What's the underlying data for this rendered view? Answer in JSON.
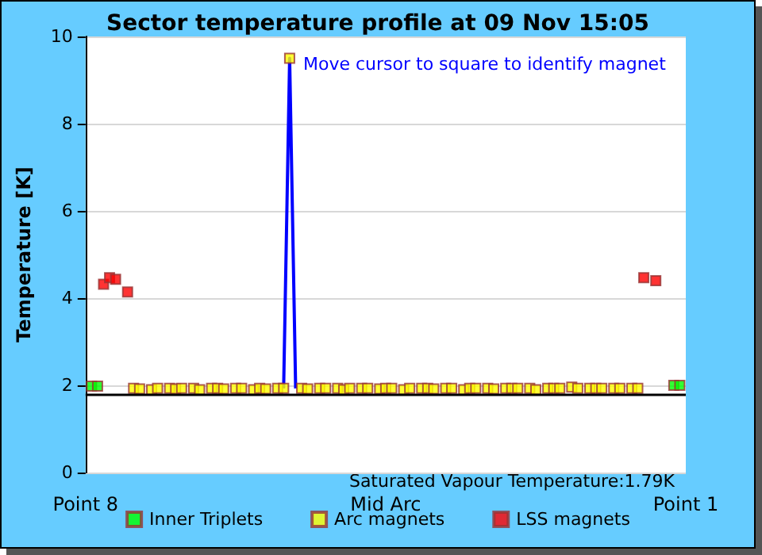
{
  "chart_data": {
    "type": "scatter",
    "title": "Sector temperature profile at 09 Nov 15:05",
    "ylabel": "Temperature [K]",
    "annotations": [
      "Move cursor to square to identify magnet",
      "Saturated Vapour Temperature:1.79K"
    ],
    "categories": [
      "Point 8",
      null,
      null,
      null,
      null,
      null,
      null,
      null,
      null,
      null,
      null,
      null,
      null,
      null,
      null,
      null,
      null,
      null,
      null,
      null,
      null,
      null,
      null,
      null,
      null,
      null,
      null,
      null,
      null,
      null,
      null,
      null,
      null,
      null,
      null,
      null,
      null,
      null,
      null,
      null,
      null,
      null,
      null,
      null,
      null,
      null,
      null,
      null,
      null,
      null,
      "Mid Arc",
      null,
      null,
      null,
      null,
      null,
      null,
      null,
      null,
      null,
      null,
      null,
      null,
      null,
      null,
      null,
      null,
      null,
      null,
      null,
      null,
      null,
      null,
      null,
      null,
      null,
      null,
      null,
      null,
      null,
      null,
      null,
      null,
      null,
      null,
      null,
      null,
      null,
      null,
      null,
      null,
      null,
      null,
      null,
      null,
      null,
      null,
      null,
      null,
      null,
      "Point 1"
    ],
    "ylim": [
      0,
      10
    ],
    "yticks": [
      0,
      2,
      4,
      6,
      8,
      10
    ],
    "grid": "y",
    "legend": "bottom",
    "marker": "square",
    "ref_lines": [
      {
        "axis": "y",
        "value": 1.79,
        "color": "#000000"
      }
    ],
    "series": [
      {
        "type": "line",
        "color": "#0000ff",
        "marker": "none",
        "values": [
          null,
          null,
          null,
          null,
          null,
          null,
          null,
          null,
          null,
          null,
          null,
          null,
          null,
          null,
          null,
          null,
          null,
          null,
          null,
          null,
          null,
          null,
          null,
          null,
          null,
          null,
          null,
          null,
          null,
          null,
          null,
          null,
          null,
          1.93,
          9.5,
          1.93,
          null,
          null,
          null,
          null,
          null,
          null,
          null,
          null,
          null,
          null,
          null,
          null,
          null,
          null,
          null,
          null,
          null,
          null,
          null,
          null,
          null,
          null,
          null,
          null,
          null,
          null,
          null,
          null,
          null,
          null,
          null,
          null,
          null,
          null,
          null,
          null,
          null,
          null,
          null,
          null,
          null,
          null,
          null,
          null,
          null,
          null,
          null,
          null,
          null,
          null,
          null,
          null,
          null,
          null,
          null,
          null,
          null,
          null,
          null,
          null,
          null,
          null,
          null,
          null,
          null
        ]
      },
      {
        "name": "Inner Triplets",
        "color": "#00ff00",
        "values": [
          null,
          1.98,
          1.98,
          null,
          null,
          null,
          null,
          null,
          null,
          null,
          null,
          null,
          null,
          null,
          null,
          null,
          null,
          null,
          null,
          null,
          null,
          null,
          null,
          null,
          null,
          null,
          null,
          null,
          null,
          null,
          null,
          null,
          null,
          null,
          null,
          null,
          null,
          null,
          null,
          null,
          null,
          null,
          null,
          null,
          null,
          null,
          null,
          null,
          null,
          null,
          null,
          null,
          null,
          null,
          null,
          null,
          null,
          null,
          null,
          null,
          null,
          null,
          null,
          null,
          null,
          null,
          null,
          null,
          null,
          null,
          null,
          null,
          null,
          null,
          null,
          null,
          null,
          null,
          null,
          null,
          null,
          null,
          null,
          null,
          null,
          null,
          null,
          null,
          null,
          null,
          null,
          null,
          null,
          null,
          null,
          null,
          null,
          null,
          2.0,
          2.0,
          null
        ]
      },
      {
        "name": "Arc magnets",
        "color": "#ffff00",
        "values": [
          null,
          null,
          null,
          null,
          null,
          null,
          null,
          null,
          1.93,
          1.92,
          null,
          1.9,
          1.93,
          null,
          1.93,
          1.92,
          1.93,
          null,
          1.93,
          1.9,
          null,
          1.93,
          1.93,
          1.92,
          null,
          1.93,
          1.93,
          null,
          1.9,
          1.93,
          1.92,
          null,
          1.93,
          1.93,
          9.5,
          null,
          1.93,
          1.92,
          null,
          1.93,
          1.93,
          null,
          1.93,
          1.9,
          1.93,
          null,
          1.93,
          1.93,
          null,
          1.92,
          1.93,
          1.93,
          null,
          1.9,
          1.93,
          null,
          1.93,
          1.93,
          1.92,
          null,
          1.93,
          1.93,
          null,
          1.9,
          1.93,
          1.93,
          null,
          1.93,
          1.92,
          null,
          1.93,
          1.93,
          1.93,
          null,
          1.93,
          1.9,
          null,
          1.93,
          1.93,
          1.93,
          null,
          1.96,
          1.93,
          null,
          1.93,
          1.93,
          1.93,
          null,
          1.93,
          1.93,
          null,
          1.93,
          1.93,
          null,
          null,
          null,
          null,
          null,
          null,
          null,
          null
        ]
      },
      {
        "name": "LSS magnets",
        "color": "#ff0000",
        "values": [
          null,
          null,
          null,
          4.32,
          4.47,
          4.43,
          null,
          4.14,
          null,
          null,
          null,
          null,
          null,
          null,
          null,
          null,
          null,
          null,
          null,
          null,
          null,
          null,
          null,
          null,
          null,
          null,
          null,
          null,
          null,
          null,
          null,
          null,
          null,
          null,
          null,
          null,
          null,
          null,
          null,
          null,
          null,
          null,
          null,
          null,
          null,
          null,
          null,
          null,
          null,
          null,
          null,
          null,
          null,
          null,
          null,
          null,
          null,
          null,
          null,
          null,
          null,
          null,
          null,
          null,
          null,
          null,
          null,
          null,
          null,
          null,
          null,
          null,
          null,
          null,
          null,
          null,
          null,
          null,
          null,
          null,
          null,
          null,
          null,
          null,
          null,
          null,
          null,
          null,
          null,
          null,
          null,
          null,
          null,
          4.47,
          null,
          4.4,
          null,
          null,
          null,
          null,
          null
        ]
      }
    ]
  }
}
